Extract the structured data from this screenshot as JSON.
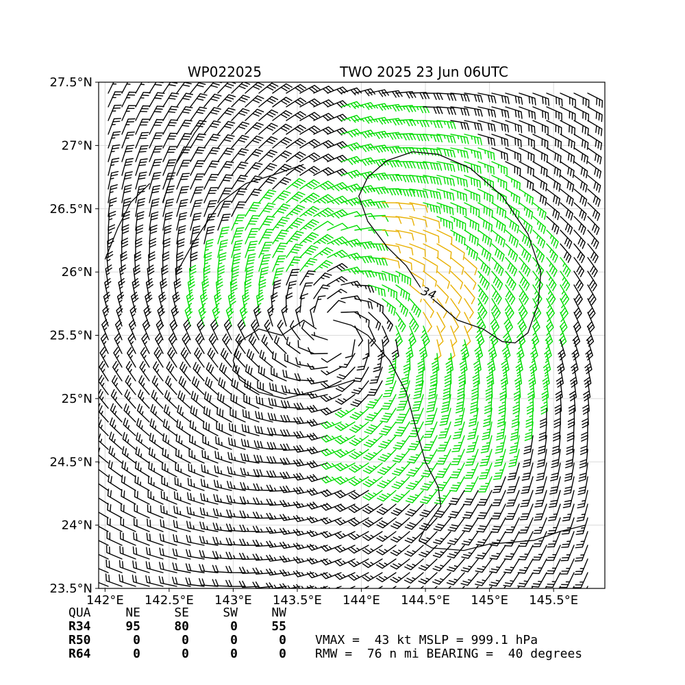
{
  "title": {
    "storm_id": "WP022025",
    "valid": "TWO 2025 23 Jun 06UTC"
  },
  "colors": {
    "below_34kt": "#000000",
    "barb_34_50kt": "#00dd00",
    "barb_50_64kt": "#e8b000",
    "contour": "#000000",
    "frame": "#000000",
    "grid": "#d9d9d9"
  },
  "chart_data": {
    "type": "wind-barb map",
    "xlim": [
      141.95,
      145.9
    ],
    "ylim": [
      23.5,
      27.5
    ],
    "x_ticks": [
      142,
      142.5,
      143,
      143.5,
      144,
      144.5,
      145,
      145.5
    ],
    "x_tick_labels": [
      "142°E",
      "142.5°E",
      "143°E",
      "143.5°E",
      "144°E",
      "144.5°E",
      "145°E",
      "145.5°E"
    ],
    "y_ticks": [
      23.5,
      24,
      24.5,
      25,
      25.5,
      26,
      26.5,
      27,
      27.5
    ],
    "y_tick_labels": [
      "23.5°N",
      "24°N",
      "24.5°N",
      "25°N",
      "25.5°N",
      "26°N",
      "26.5°N",
      "27°N",
      "27.5°N"
    ],
    "grid": true,
    "center": {
      "lon": 143.8,
      "lat": 25.55
    },
    "vmax_kt": 43,
    "mslp_hpa": 999.1,
    "rmw_nmi": 76,
    "bearing_deg": 40,
    "radii_nmi": {
      "R34": {
        "NE": 95,
        "SE": 80,
        "SW": 0,
        "NW": 55
      },
      "R50": {
        "NE": 0,
        "SE": 0,
        "SW": 0,
        "NW": 0
      },
      "R64": {
        "NE": 0,
        "SE": 0,
        "SW": 0,
        "NW": 0
      }
    },
    "contours": [
      {
        "label": "34",
        "label_at": {
          "lon": 144.52,
          "lat": 25.82
        },
        "path": [
          [
            144.48,
            25.85
          ],
          [
            144.35,
            26.05
          ],
          [
            144.2,
            26.2
          ],
          [
            144.05,
            26.4
          ],
          [
            143.98,
            26.6
          ],
          [
            144.05,
            26.75
          ],
          [
            144.2,
            26.88
          ],
          [
            144.4,
            26.95
          ],
          [
            144.6,
            26.93
          ],
          [
            144.85,
            26.82
          ],
          [
            145.1,
            26.6
          ],
          [
            145.3,
            26.3
          ],
          [
            145.4,
            26.0
          ],
          [
            145.38,
            25.75
          ],
          [
            145.3,
            25.52
          ],
          [
            145.2,
            25.44
          ],
          [
            145.1,
            25.45
          ],
          [
            144.95,
            25.55
          ],
          [
            144.75,
            25.62
          ],
          [
            144.6,
            25.75
          ],
          [
            144.48,
            25.85
          ]
        ]
      },
      {
        "label": "",
        "path": [
          [
            143.78,
            25.62
          ],
          [
            143.92,
            25.58
          ],
          [
            144.05,
            25.5
          ],
          [
            144.22,
            25.3
          ],
          [
            144.35,
            25.05
          ],
          [
            144.43,
            24.75
          ],
          [
            144.5,
            24.5
          ],
          [
            144.6,
            24.3
          ],
          [
            144.62,
            24.15
          ],
          [
            144.5,
            23.98
          ],
          [
            144.45,
            23.88
          ],
          [
            144.55,
            23.82
          ],
          [
            144.8,
            23.8
          ],
          [
            145.0,
            23.85
          ],
          [
            145.35,
            23.88
          ],
          [
            145.55,
            23.95
          ],
          [
            145.75,
            24.0
          ]
        ]
      },
      {
        "label": "",
        "path": [
          [
            143.65,
            25.55
          ],
          [
            143.55,
            25.62
          ],
          [
            143.45,
            25.55
          ],
          [
            143.38,
            25.5
          ],
          [
            143.2,
            25.55
          ],
          [
            143.05,
            25.45
          ],
          [
            143.0,
            25.3
          ],
          [
            143.05,
            25.15
          ],
          [
            143.2,
            25.05
          ],
          [
            143.4,
            25.0
          ],
          [
            143.6,
            25.05
          ],
          [
            143.8,
            25.1
          ],
          [
            143.95,
            25.15
          ]
        ]
      },
      {
        "label": "",
        "path": [
          [
            142.55,
            25.98
          ],
          [
            142.7,
            26.25
          ],
          [
            142.9,
            26.55
          ],
          [
            143.1,
            26.7
          ],
          [
            143.35,
            26.78
          ],
          [
            143.55,
            26.85
          ]
        ]
      },
      {
        "label": "",
        "path": [
          [
            142.45,
            26.55
          ],
          [
            142.55,
            26.85
          ],
          [
            142.7,
            27.1
          ],
          [
            142.85,
            27.3
          ]
        ]
      },
      {
        "label": "",
        "path": [
          [
            142.0,
            26.1
          ],
          [
            142.1,
            26.35
          ],
          [
            142.2,
            26.55
          ],
          [
            142.35,
            26.7
          ]
        ]
      }
    ]
  },
  "table": {
    "headers": [
      "QUA",
      "NE",
      "SE",
      "SW",
      "NW"
    ],
    "rows": [
      {
        "label": "R34",
        "values": [
          "95",
          "80",
          "0",
          "55"
        ]
      },
      {
        "label": "R50",
        "values": [
          "0",
          "0",
          "0",
          "0"
        ]
      },
      {
        "label": "R64",
        "values": [
          "0",
          "0",
          "0",
          "0"
        ]
      }
    ],
    "line1": "VMAX =  43 kt MSLP = 999.1 hPa",
    "line2": "RMW =  76 n mi BEARING =  40 degrees"
  }
}
